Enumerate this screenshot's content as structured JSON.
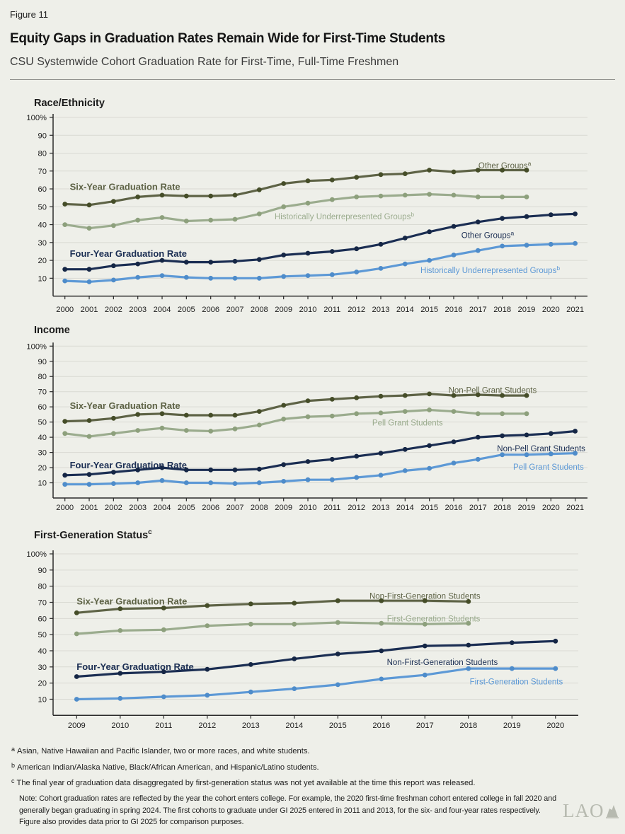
{
  "page": {
    "figure_label": "Figure 11",
    "title": "Equity Gaps in Graduation Rates Remain Wide for First-Time Students",
    "subtitle": "CSU Systemwide Cohort Graduation Rate for First-Time, Full-Time Freshmen"
  },
  "colors": {
    "background": "#eeefe9",
    "gridline": "#d9dad3",
    "axis": "#2b2b2b",
    "tick_text": "#1d1d1d",
    "dark_olive": "#5e6346",
    "dark_olive_marker": "#454d28",
    "sage": "#9bac8e",
    "sage_marker": "#8da07c",
    "navy": "#1b2e53",
    "navy_marker": "#152645",
    "blue": "#5d99d6",
    "blue_marker": "#4e8cca",
    "logo_gray": "#b7bab0"
  },
  "chart_data": [
    {
      "type": "line",
      "id": "race-ethnicity",
      "title": "Race/Ethnicity",
      "title_sup": "",
      "ylim": [
        0,
        100
      ],
      "grid": true,
      "yticks": [
        100,
        90,
        80,
        70,
        60,
        50,
        40,
        30,
        20,
        10
      ],
      "ytick_labels": [
        "100%",
        "90",
        "80",
        "70",
        "60",
        "50",
        "40",
        "30",
        "20",
        "10"
      ],
      "x": [
        2000,
        2001,
        2002,
        2003,
        2004,
        2005,
        2006,
        2007,
        2008,
        2009,
        2010,
        2011,
        2012,
        2013,
        2014,
        2015,
        2016,
        2017,
        2018,
        2019,
        2020,
        2021
      ],
      "series": [
        {
          "key": "six-year-other-groups",
          "name": "Six-Year Graduation Rate — Other Groups",
          "color": "dark_olive",
          "values": [
            51.5,
            51,
            53,
            55.5,
            56.5,
            56,
            56,
            56.5,
            59.5,
            63,
            64.5,
            65,
            66.5,
            68,
            68.5,
            70.5,
            69.5,
            70.5,
            70.5,
            70.5,
            null,
            null
          ]
        },
        {
          "key": "six-year-historically-underrepresented",
          "name": "Six-Year Graduation Rate — Historically Underrepresented Groups",
          "color": "sage",
          "values": [
            40,
            38,
            39.5,
            42.5,
            44,
            42,
            42.5,
            43,
            46,
            50,
            52,
            54,
            55.5,
            56,
            56.5,
            57,
            56.5,
            55.5,
            55.5,
            55.5,
            null,
            null
          ]
        },
        {
          "key": "four-year-other-groups",
          "name": "Four-Year Graduation Rate — Other Groups",
          "color": "navy",
          "values": [
            15,
            15,
            17,
            18,
            20,
            19,
            19,
            19.5,
            20.5,
            23,
            24,
            25,
            26.5,
            29,
            32.5,
            36,
            39,
            41.5,
            43.5,
            44.5,
            45.5,
            46
          ]
        },
        {
          "key": "four-year-historically-underrepresented",
          "name": "Four-Year Graduation Rate — Historically Underrepresented Groups",
          "color": "blue",
          "values": [
            8.5,
            8,
            9,
            10.5,
            11.5,
            10.5,
            10,
            10,
            10,
            11,
            11.5,
            12,
            13.5,
            15.5,
            18,
            20,
            23,
            25.5,
            28,
            28.5,
            29,
            29.5
          ]
        }
      ],
      "annotations": [
        {
          "text": "Six-Year Graduation Rate",
          "sup": "",
          "x": 2000.2,
          "y": 61,
          "anchor": "start",
          "bold": true,
          "color": "dark_olive"
        },
        {
          "text": "Four-Year Graduation Rate",
          "sup": "",
          "x": 2000.2,
          "y": 23.5,
          "anchor": "start",
          "bold": true,
          "color": "navy"
        },
        {
          "text": "Other Groups",
          "sup": "a",
          "x": 2018.1,
          "y": 73,
          "anchor": "middle",
          "bold": false,
          "color": "dark_olive"
        },
        {
          "text": "Historically Underrepresented Groups",
          "sup": "b",
          "x": 2011.5,
          "y": 44.5,
          "anchor": "middle",
          "bold": false,
          "color": "sage"
        },
        {
          "text": "Other Groups",
          "sup": "a",
          "x": 2017.4,
          "y": 34,
          "anchor": "middle",
          "bold": false,
          "color": "navy"
        },
        {
          "text": "Historically Underrepresented Groups",
          "sup": "b",
          "x": 2017.5,
          "y": 14.5,
          "anchor": "middle",
          "bold": false,
          "color": "blue"
        }
      ]
    },
    {
      "type": "line",
      "id": "income",
      "title": "Income",
      "title_sup": "",
      "ylim": [
        0,
        100
      ],
      "grid": true,
      "yticks": [
        100,
        90,
        80,
        70,
        60,
        50,
        40,
        30,
        20,
        10
      ],
      "ytick_labels": [
        "100%",
        "90",
        "80",
        "70",
        "60",
        "50",
        "40",
        "30",
        "20",
        "10"
      ],
      "x": [
        2000,
        2001,
        2002,
        2003,
        2004,
        2005,
        2006,
        2007,
        2008,
        2009,
        2010,
        2011,
        2012,
        2013,
        2014,
        2015,
        2016,
        2017,
        2018,
        2019,
        2020,
        2021
      ],
      "series": [
        {
          "key": "six-year-non-pell",
          "name": "Six-Year Graduation Rate — Non-Pell Grant Students",
          "color": "dark_olive",
          "values": [
            50.5,
            51,
            52.5,
            55,
            55.5,
            54.5,
            54.5,
            54.5,
            57,
            61,
            64,
            65,
            66,
            67,
            67.5,
            68.5,
            67.5,
            68,
            67.5,
            67.5,
            null,
            null
          ]
        },
        {
          "key": "six-year-pell",
          "name": "Six-Year Graduation Rate — Pell Grant Students",
          "color": "sage",
          "values": [
            42.5,
            40.5,
            42.5,
            44.5,
            46,
            44.5,
            44,
            45.5,
            48,
            52,
            53.5,
            54,
            55.5,
            56,
            57,
            58,
            57,
            55.5,
            55.5,
            55.5,
            null,
            null
          ]
        },
        {
          "key": "four-year-non-pell",
          "name": "Four-Year Graduation Rate — Non-Pell Grant Students",
          "color": "navy",
          "values": [
            15,
            15.5,
            17,
            18.5,
            20,
            18.5,
            18.5,
            18.5,
            19,
            22,
            24,
            25.5,
            27.5,
            29.5,
            32,
            34.5,
            37,
            40,
            41,
            41.5,
            42.5,
            44
          ]
        },
        {
          "key": "four-year-pell",
          "name": "Four-Year Graduation Rate — Pell Grant Students",
          "color": "blue",
          "values": [
            9,
            9,
            9.5,
            10,
            11.5,
            10,
            10,
            9.5,
            10,
            11,
            12,
            12,
            13.5,
            15,
            18,
            19.5,
            23,
            25.5,
            28.5,
            28.5,
            29,
            29.5
          ]
        }
      ],
      "annotations": [
        {
          "text": "Six-Year Graduation Rate",
          "sup": "",
          "x": 2000.2,
          "y": 60.5,
          "anchor": "start",
          "bold": true,
          "color": "dark_olive"
        },
        {
          "text": "Four-Year Graduation Rate",
          "sup": "",
          "x": 2000.2,
          "y": 21.5,
          "anchor": "start",
          "bold": true,
          "color": "navy"
        },
        {
          "text": "Non-Pell Grant Students",
          "sup": "",
          "x": 2017.6,
          "y": 71,
          "anchor": "middle",
          "bold": false,
          "color": "dark_olive"
        },
        {
          "text": "Pell Grant Students",
          "sup": "",
          "x": 2014.1,
          "y": 49.5,
          "anchor": "middle",
          "bold": false,
          "color": "sage"
        },
        {
          "text": "Non-Pell Grant Students",
          "sup": "",
          "x": 2019.6,
          "y": 32.5,
          "anchor": "middle",
          "bold": false,
          "color": "navy"
        },
        {
          "text": "Pell Grant Students",
          "sup": "",
          "x": 2019.9,
          "y": 20.5,
          "anchor": "middle",
          "bold": false,
          "color": "blue"
        }
      ]
    },
    {
      "type": "line",
      "id": "first-generation-status",
      "title": "First-Generation Status",
      "title_sup": "c",
      "ylim": [
        0,
        100
      ],
      "grid": true,
      "yticks": [
        100,
        90,
        80,
        70,
        60,
        50,
        40,
        30,
        20,
        10
      ],
      "ytick_labels": [
        "100%",
        "90",
        "80",
        "70",
        "60",
        "50",
        "40",
        "30",
        "20",
        "10"
      ],
      "x": [
        2009,
        2010,
        2011,
        2012,
        2013,
        2014,
        2015,
        2016,
        2017,
        2018,
        2019,
        2020
      ],
      "series": [
        {
          "key": "six-year-non-first-generation",
          "name": "Six-Year Graduation Rate — Non-First-Generation Students",
          "color": "dark_olive",
          "values": [
            63.5,
            66,
            66.5,
            68,
            69,
            69.5,
            71,
            71,
            71,
            70.5,
            null,
            null
          ]
        },
        {
          "key": "six-year-first-generation",
          "name": "Six-Year Graduation Rate — First-Generation Students",
          "color": "sage",
          "values": [
            50.5,
            52.5,
            53,
            55.5,
            56.5,
            56.5,
            57.5,
            57,
            56.5,
            57,
            null,
            null
          ]
        },
        {
          "key": "four-year-non-first-generation",
          "name": "Four-Year Graduation Rate — Non-First-Generation Students",
          "color": "navy",
          "values": [
            24,
            26,
            27,
            28.5,
            31.5,
            35,
            38,
            40,
            43,
            43.5,
            45,
            46
          ]
        },
        {
          "key": "four-year-first-generation",
          "name": "Four-Year Graduation Rate — First-Generation Students",
          "color": "blue",
          "values": [
            10,
            10.5,
            11.5,
            12.5,
            14.5,
            16.5,
            19,
            22.5,
            25,
            29,
            29,
            29
          ]
        }
      ],
      "annotations": [
        {
          "text": "Six-Year Graduation Rate",
          "sup": "",
          "x": 2009,
          "y": 70.5,
          "anchor": "start",
          "bold": true,
          "color": "dark_olive"
        },
        {
          "text": "Four-Year Graduation Rate",
          "sup": "",
          "x": 2009,
          "y": 30,
          "anchor": "start",
          "bold": true,
          "color": "navy"
        },
        {
          "text": "Non-First-Generation Students",
          "sup": "",
          "x": 2017,
          "y": 74,
          "anchor": "middle",
          "bold": false,
          "color": "dark_olive"
        },
        {
          "text": "First-Generation Students",
          "sup": "",
          "x": 2017.2,
          "y": 60,
          "anchor": "middle",
          "bold": false,
          "color": "sage"
        },
        {
          "text": "Non-First-Generation Students",
          "sup": "",
          "x": 2017.4,
          "y": 33,
          "anchor": "middle",
          "bold": false,
          "color": "navy"
        },
        {
          "text": "First-Generation Students",
          "sup": "",
          "x": 2019.1,
          "y": 21,
          "anchor": "middle",
          "bold": false,
          "color": "blue"
        }
      ]
    }
  ],
  "footnotes": [
    {
      "marker": "a",
      "text": "Asian, Native Hawaiian and Pacific Islander, two or more races, and white students."
    },
    {
      "marker": "b",
      "text": "American Indian/Alaska Native, Black/African American, and Hispanic/Latino students."
    },
    {
      "marker": "c",
      "text": "The final year of graduation data disaggregated by first-generation status was not yet available at the time this report was released."
    }
  ],
  "note_lines": [
    "Note: Cohort graduation rates are reflected by the year the cohort enters college. For example, the 2020 first-time freshman cohort entered college in fall 2020 and",
    "generally began graduating in spring 2024. The first cohorts to graduate under GI 2025 entered in 2011 and 2013, for the six- and four-year rates respectively.",
    "Figure also provides data prior to GI 2025 for comparison purposes."
  ],
  "logo": {
    "text": "LAO"
  }
}
